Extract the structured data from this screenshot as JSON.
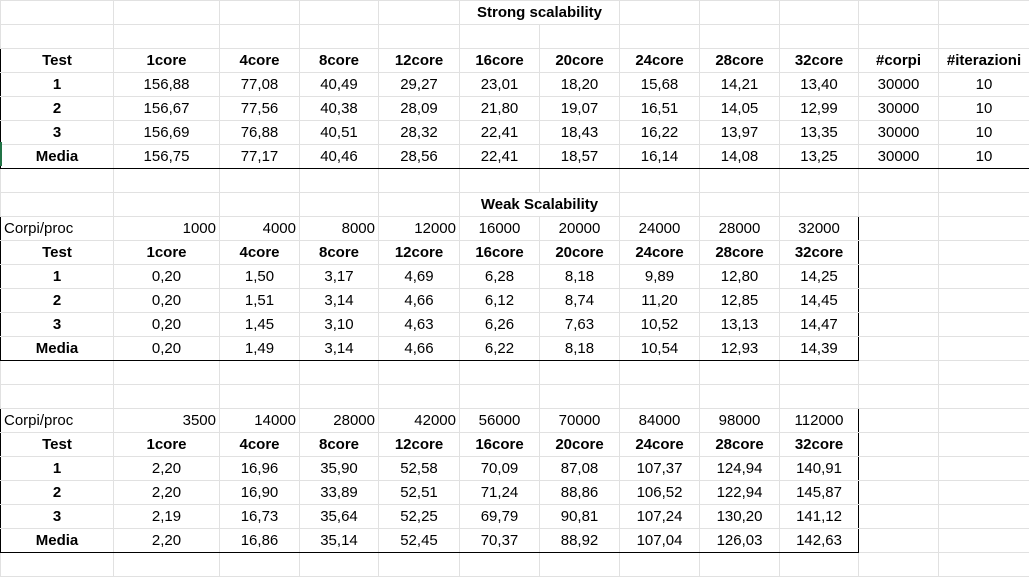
{
  "strong": {
    "title": "Strong scalability",
    "header": [
      "Test",
      "1core",
      "4core",
      "8core",
      "12core",
      "16core",
      "20core",
      "24core",
      "28core",
      "32core",
      "#corpi",
      "#iterazioni"
    ],
    "rows": [
      [
        "1",
        "156,88",
        "77,08",
        "40,49",
        "29,27",
        "23,01",
        "18,20",
        "15,68",
        "14,21",
        "13,40",
        "30000",
        "10"
      ],
      [
        "2",
        "156,67",
        "77,56",
        "40,38",
        "28,09",
        "21,80",
        "19,07",
        "16,51",
        "14,05",
        "12,99",
        "30000",
        "10"
      ],
      [
        "3",
        "156,69",
        "76,88",
        "40,51",
        "28,32",
        "22,41",
        "18,43",
        "16,22",
        "13,97",
        "13,35",
        "30000",
        "10"
      ],
      [
        "Media",
        "156,75",
        "77,17",
        "40,46",
        "28,56",
        "22,41",
        "18,57",
        "16,14",
        "14,08",
        "13,25",
        "30000",
        "10"
      ]
    ]
  },
  "weak1": {
    "title": "Weak Scalability",
    "corpi_label": "Corpi/proc",
    "corpi": [
      "1000",
      "4000",
      "8000",
      "12000",
      "16000",
      "20000",
      "24000",
      "28000",
      "32000"
    ],
    "header": [
      "Test",
      "1core",
      "4core",
      "8core",
      "12core",
      "16core",
      "20core",
      "24core",
      "28core",
      "32core"
    ],
    "rows": [
      [
        "1",
        "0,20",
        "1,50",
        "3,17",
        "4,69",
        "6,28",
        "8,18",
        "9,89",
        "12,80",
        "14,25"
      ],
      [
        "2",
        "0,20",
        "1,51",
        "3,14",
        "4,66",
        "6,12",
        "8,74",
        "11,20",
        "12,85",
        "14,45"
      ],
      [
        "3",
        "0,20",
        "1,45",
        "3,10",
        "4,63",
        "6,26",
        "7,63",
        "10,52",
        "13,13",
        "14,47"
      ],
      [
        "Media",
        "0,20",
        "1,49",
        "3,14",
        "4,66",
        "6,22",
        "8,18",
        "10,54",
        "12,93",
        "14,39"
      ]
    ]
  },
  "weak2": {
    "corpi_label": "Corpi/proc",
    "corpi": [
      "3500",
      "14000",
      "28000",
      "42000",
      "56000",
      "70000",
      "84000",
      "98000",
      "112000"
    ],
    "header": [
      "Test",
      "1core",
      "4core",
      "8core",
      "12core",
      "16core",
      "20core",
      "24core",
      "28core",
      "32core"
    ],
    "rows": [
      [
        "1",
        "2,20",
        "16,96",
        "35,90",
        "52,58",
        "70,09",
        "87,08",
        "107,37",
        "124,94",
        "140,91"
      ],
      [
        "2",
        "2,20",
        "16,90",
        "33,89",
        "52,51",
        "71,24",
        "88,86",
        "106,52",
        "122,94",
        "145,87"
      ],
      [
        "3",
        "2,19",
        "16,73",
        "35,64",
        "52,25",
        "69,79",
        "90,81",
        "107,24",
        "130,20",
        "141,12"
      ],
      [
        "Media",
        "2,20",
        "16,86",
        "35,14",
        "52,45",
        "70,37",
        "88,92",
        "107,04",
        "126,03",
        "142,63"
      ]
    ]
  }
}
